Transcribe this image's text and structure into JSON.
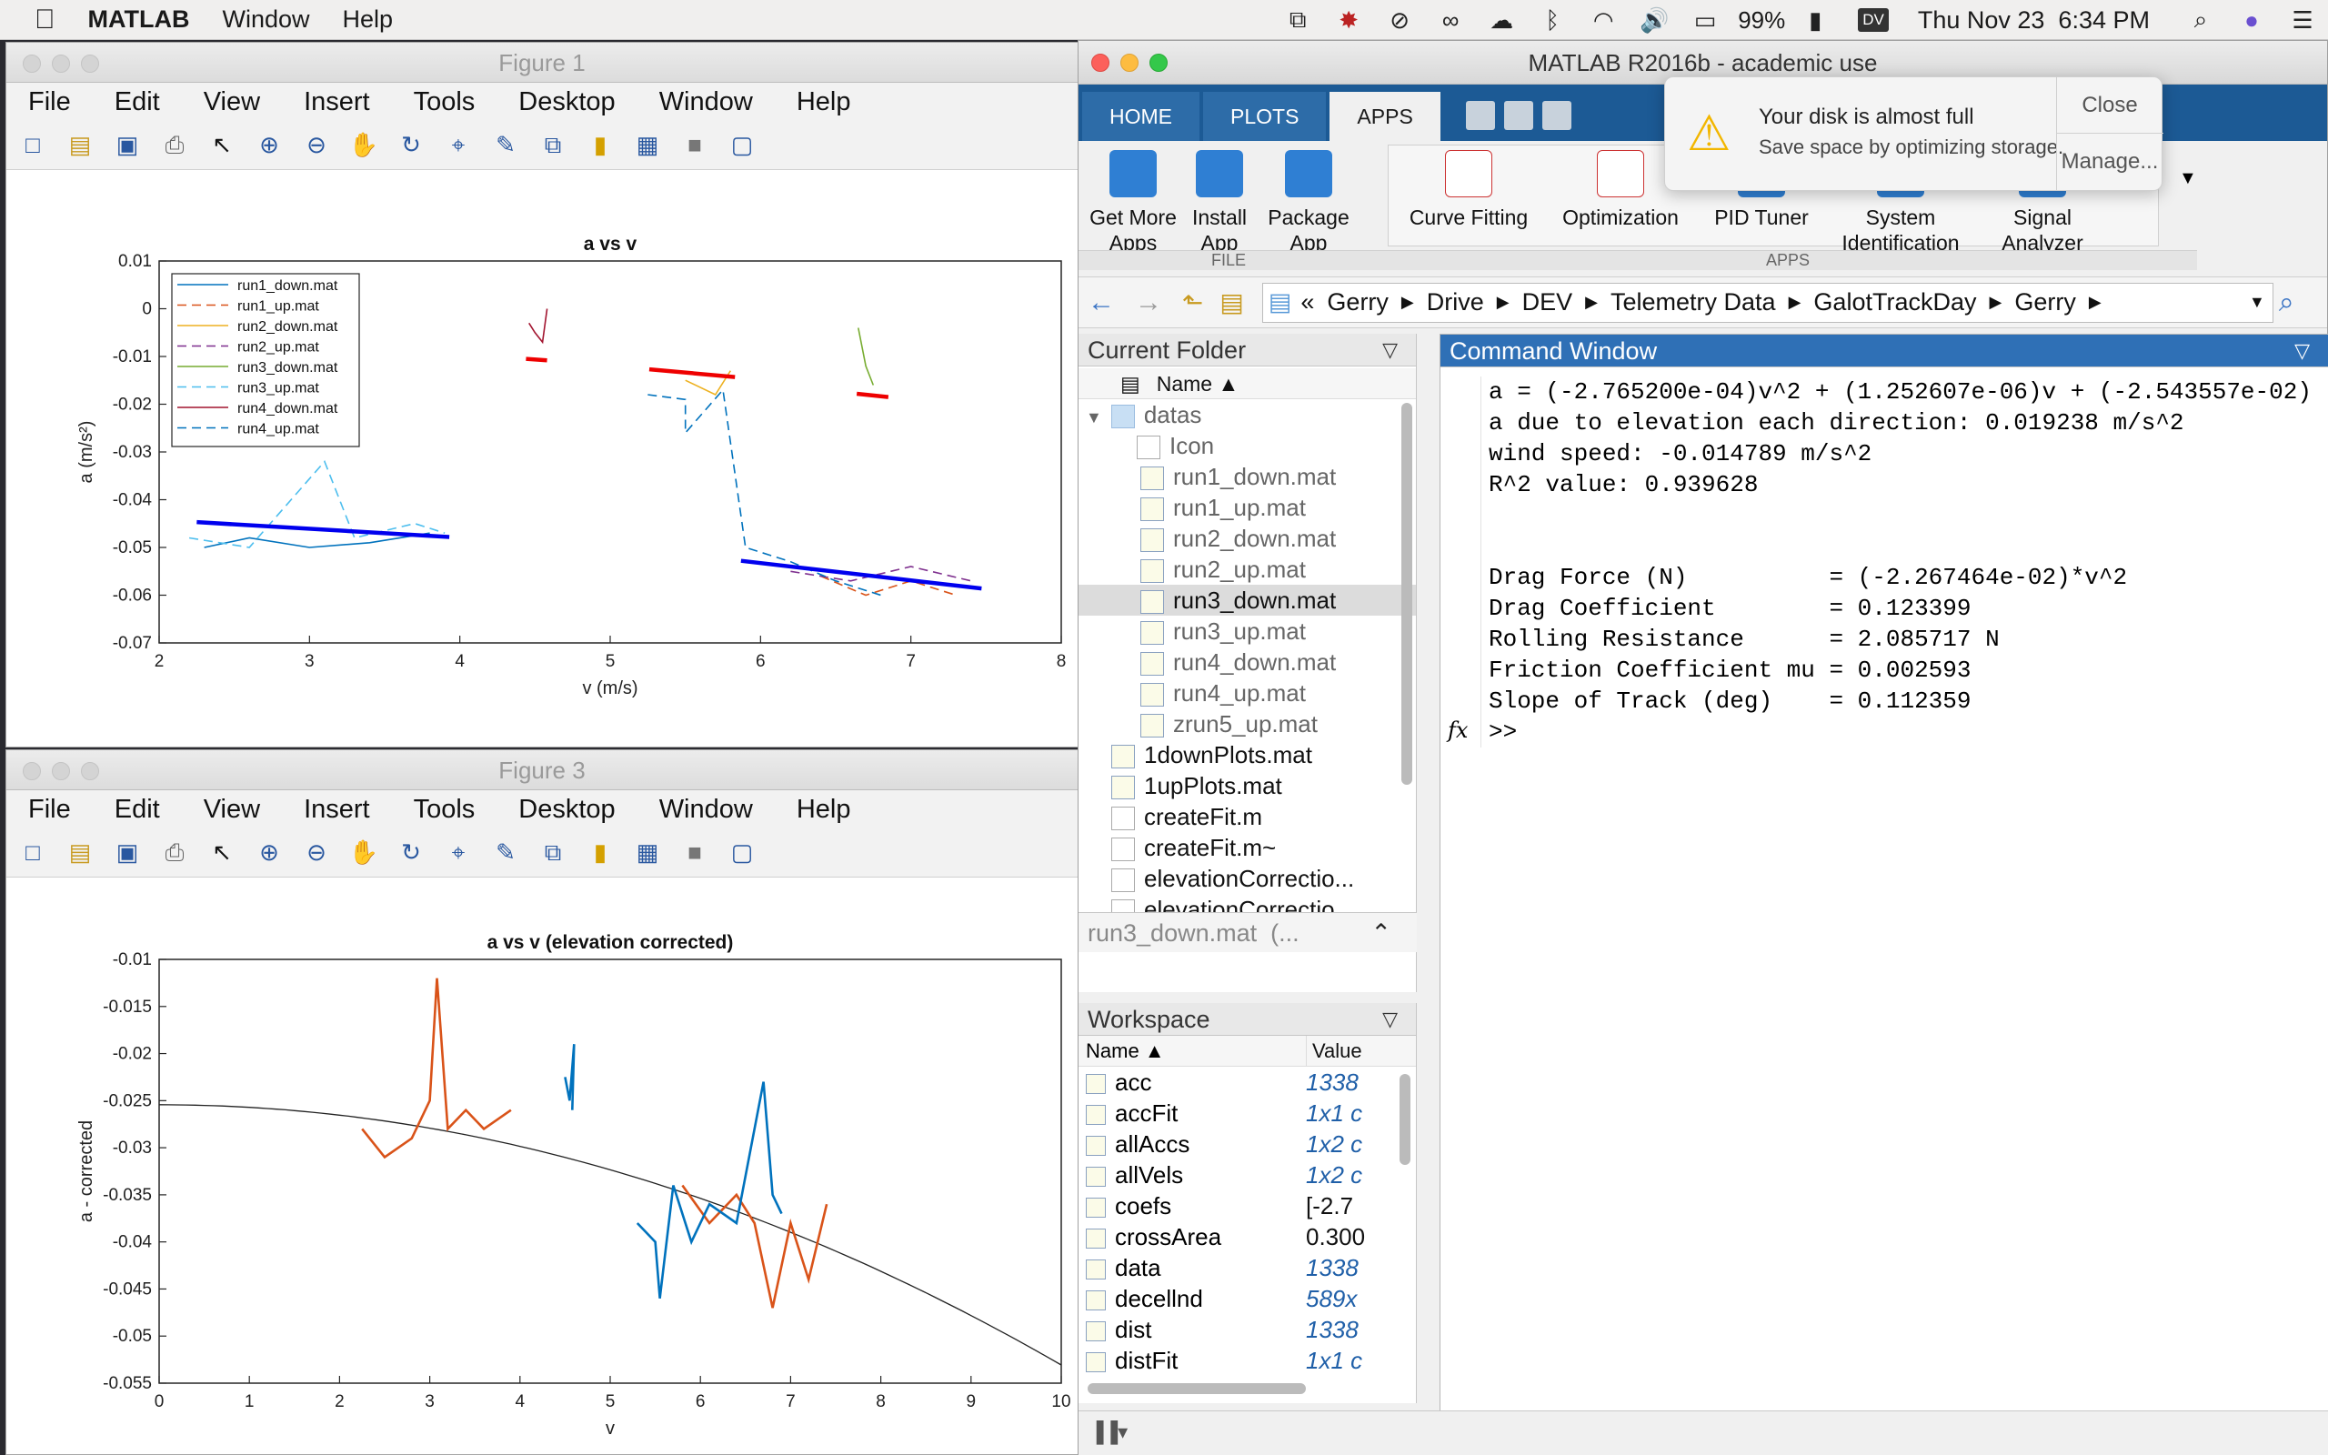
{
  "menubar": {
    "app": "MATLAB",
    "items": [
      "Window",
      "Help"
    ],
    "battery": "99%",
    "user_initials": "DV",
    "clock": "Thu Nov 23  6:34 PM"
  },
  "figure1": {
    "title": "Figure 1",
    "menu": [
      "File",
      "Edit",
      "View",
      "Insert",
      "Tools",
      "Desktop",
      "Window",
      "Help"
    ],
    "chart_data": {
      "type": "line",
      "title": "a vs v",
      "xlabel": "v (m/s)",
      "ylabel": "a (m/s²)",
      "xlim": [
        2,
        8
      ],
      "ylim": [
        -0.07,
        0.01
      ],
      "xticks": [
        "2",
        "3",
        "4",
        "5",
        "6",
        "7",
        "8"
      ],
      "yticks": [
        "0.01",
        "0",
        "-0.01",
        "-0.02",
        "-0.03",
        "-0.04",
        "-0.05",
        "-0.06",
        "-0.07"
      ],
      "legend_position": "top-left",
      "series": [
        {
          "name": "run1_down.mat",
          "color": "#0072bd",
          "style": "solid",
          "x": [
            2.3,
            2.6,
            3.0,
            3.4,
            3.8
          ],
          "y": [
            -0.05,
            -0.048,
            -0.05,
            -0.049,
            -0.047
          ]
        },
        {
          "name": "run1_up.mat",
          "color": "#d95319",
          "style": "dashed",
          "x": [
            6.4,
            6.7,
            7.0,
            7.3
          ],
          "y": [
            -0.056,
            -0.06,
            -0.057,
            -0.06
          ]
        },
        {
          "name": "run2_down.mat",
          "color": "#edb120",
          "style": "solid",
          "x": [
            5.5,
            5.7,
            5.8
          ],
          "y": [
            -0.015,
            -0.018,
            -0.013
          ]
        },
        {
          "name": "run2_up.mat",
          "color": "#7e2f8e",
          "style": "dashed",
          "x": [
            6.2,
            6.6,
            7.0,
            7.4
          ],
          "y": [
            -0.055,
            -0.057,
            -0.054,
            -0.057
          ]
        },
        {
          "name": "run3_down.mat",
          "color": "#77ac30",
          "style": "solid",
          "x": [
            6.65,
            6.7,
            6.75
          ],
          "y": [
            -0.004,
            -0.012,
            -0.016
          ]
        },
        {
          "name": "run3_up.mat",
          "color": "#4dbeee",
          "style": "dashed",
          "x": [
            2.2,
            2.6,
            3.1,
            3.3,
            3.7,
            3.9
          ],
          "y": [
            -0.048,
            -0.05,
            -0.032,
            -0.048,
            -0.045,
            -0.047
          ]
        },
        {
          "name": "run4_down.mat",
          "color": "#a2142f",
          "style": "solid",
          "x": [
            4.46,
            4.5,
            4.55,
            4.58
          ],
          "y": [
            -0.003,
            -0.005,
            -0.007,
            0.0
          ]
        },
        {
          "name": "run4_up.mat",
          "color": "#0072bd",
          "style": "dashed",
          "x": [
            5.25,
            5.5,
            5.5,
            5.75,
            5.9,
            6.2,
            6.5,
            6.8
          ],
          "y": [
            -0.018,
            -0.019,
            -0.026,
            -0.017,
            -0.05,
            -0.053,
            -0.057,
            -0.06
          ]
        }
      ],
      "fit_lines": [
        {
          "color": "#0000ee",
          "x": [
            2.25,
            3.93
          ],
          "y": [
            -0.0447,
            -0.0478
          ]
        },
        {
          "color": "#0000ee",
          "x": [
            5.87,
            7.47
          ],
          "y": [
            -0.0528,
            -0.0586
          ]
        },
        {
          "color": "#ee0000",
          "x": [
            5.26,
            5.83
          ],
          "y": [
            -0.0127,
            -0.0143
          ]
        },
        {
          "color": "#ee0000",
          "x": [
            4.44,
            4.58
          ],
          "y": [
            -0.0105,
            -0.0108
          ]
        },
        {
          "color": "#ee0000",
          "x": [
            6.64,
            6.85
          ],
          "y": [
            -0.0178,
            -0.0185
          ]
        }
      ]
    }
  },
  "figure3": {
    "title": "Figure 3",
    "menu": [
      "File",
      "Edit",
      "View",
      "Insert",
      "Tools",
      "Desktop",
      "Window",
      "Help"
    ],
    "chart_data": {
      "type": "line",
      "title": "a vs v (elevation corrected)",
      "xlabel": "v",
      "ylabel": "a - corrected",
      "xlim": [
        0,
        10
      ],
      "ylim": [
        -0.055,
        -0.01
      ],
      "xticks": [
        "0",
        "1",
        "2",
        "3",
        "4",
        "5",
        "6",
        "7",
        "8",
        "9",
        "10"
      ],
      "yticks": [
        "-0.01",
        "-0.015",
        "-0.02",
        "-0.025",
        "-0.03",
        "-0.035",
        "-0.04",
        "-0.045",
        "-0.05",
        "-0.055"
      ],
      "series": [
        {
          "name": "",
          "color": "#d95319",
          "x": [
            2.25,
            2.5,
            2.8,
            3.0,
            3.08,
            3.2,
            3.4,
            3.6,
            3.9
          ],
          "y": [
            -0.028,
            -0.031,
            -0.029,
            -0.025,
            -0.012,
            -0.028,
            -0.026,
            -0.028,
            -0.026
          ]
        },
        {
          "name": "",
          "color": "#d95319",
          "x": [
            5.8,
            6.1,
            6.4,
            6.6,
            6.8,
            7.0,
            7.2,
            7.4
          ],
          "y": [
            -0.034,
            -0.038,
            -0.035,
            -0.038,
            -0.047,
            -0.038,
            -0.044,
            -0.036
          ]
        },
        {
          "name": "",
          "color": "#0072bd",
          "x": [
            4.5,
            4.55,
            4.6,
            4.58
          ],
          "y": [
            -0.0225,
            -0.025,
            -0.019,
            -0.026
          ]
        },
        {
          "name": "",
          "color": "#0072bd",
          "x": [
            5.3,
            5.5,
            5.55,
            5.7,
            5.9,
            6.1,
            6.4,
            6.7,
            6.8,
            6.9
          ],
          "y": [
            -0.038,
            -0.04,
            -0.046,
            -0.034,
            -0.04,
            -0.036,
            -0.038,
            -0.023,
            -0.035,
            -0.037
          ]
        }
      ],
      "fit_curve": {
        "color": "#222222",
        "coefs": [
          -0.0002765,
          1.2526e-06,
          -0.0254356
        ]
      }
    }
  },
  "matlab": {
    "title": "MATLAB R2016b - academic use",
    "tabs": [
      "HOME",
      "PLOTS",
      "APPS"
    ],
    "ribbon": {
      "file_buttons": [
        "Get More Apps",
        "Install App",
        "Package App"
      ],
      "file_section": "FILE",
      "apps": [
        "Curve Fitting",
        "Optimization",
        "PID Tuner",
        "System Identification",
        "Signal Analyzer"
      ],
      "apps_section": "APPS"
    },
    "path": [
      "«",
      "Gerry",
      "Drive",
      "DEV",
      "Telemetry Data",
      "GalotTrackDay",
      "Gerry"
    ],
    "current_folder": {
      "header": "Current Folder",
      "name_col": "Name ▲",
      "folder": "datas",
      "subitems": [
        "Icon",
        "run1_down.mat",
        "run1_up.mat",
        "run2_down.mat",
        "run2_up.mat",
        "run3_down.mat",
        "run3_up.mat",
        "run4_down.mat",
        "run4_up.mat",
        "zrun5_up.mat"
      ],
      "selected": "run3_down.mat",
      "files": [
        "1downPlots.mat",
        "1upPlots.mat",
        "createFit.m",
        "createFit.m~",
        "elevationCorrectio...",
        "elevationCorrectio..."
      ],
      "details": "run3_down.mat  (..."
    },
    "workspace": {
      "header": "Workspace",
      "name_col": "Name ▲",
      "value_col": "Value",
      "rows": [
        {
          "name": "acc",
          "value": "1338"
        },
        {
          "name": "accFit",
          "value": "1x1 c"
        },
        {
          "name": "allAccs",
          "value": "1x2 c"
        },
        {
          "name": "allVels",
          "value": "1x2 c"
        },
        {
          "name": "coefs",
          "value": "[-2.7"
        },
        {
          "name": "crossArea",
          "value": "0.300"
        },
        {
          "name": "data",
          "value": "1338"
        },
        {
          "name": "decellnd",
          "value": "589x"
        },
        {
          "name": "dist",
          "value": "1338"
        },
        {
          "name": "distFit",
          "value": "1x1 c"
        }
      ]
    },
    "command_window": {
      "header": "Command Window",
      "lines": [
        "a = (-2.765200e-04)v^2 + (1.252607e-06)v + (-2.543557e-02)",
        "a due to elevation each direction: 0.019238 m/s^2",
        "wind speed: -0.014789 m/s^2",
        "R^2 value: 0.939628",
        "",
        "",
        "Drag Force (N)          = (-2.267464e-02)*v^2",
        "Drag Coefficient        = 0.123399",
        "Rolling Resistance      = 2.085717 N",
        "Friction Coefficient mu = 0.002593",
        "Slope of Track (deg)    = 0.112359"
      ],
      "prompt": ">>",
      "fx": "fx"
    }
  },
  "notification": {
    "title": "Your disk is almost full",
    "body": "Save space by optimizing storage.",
    "close": "Close",
    "manage": "Manage..."
  }
}
